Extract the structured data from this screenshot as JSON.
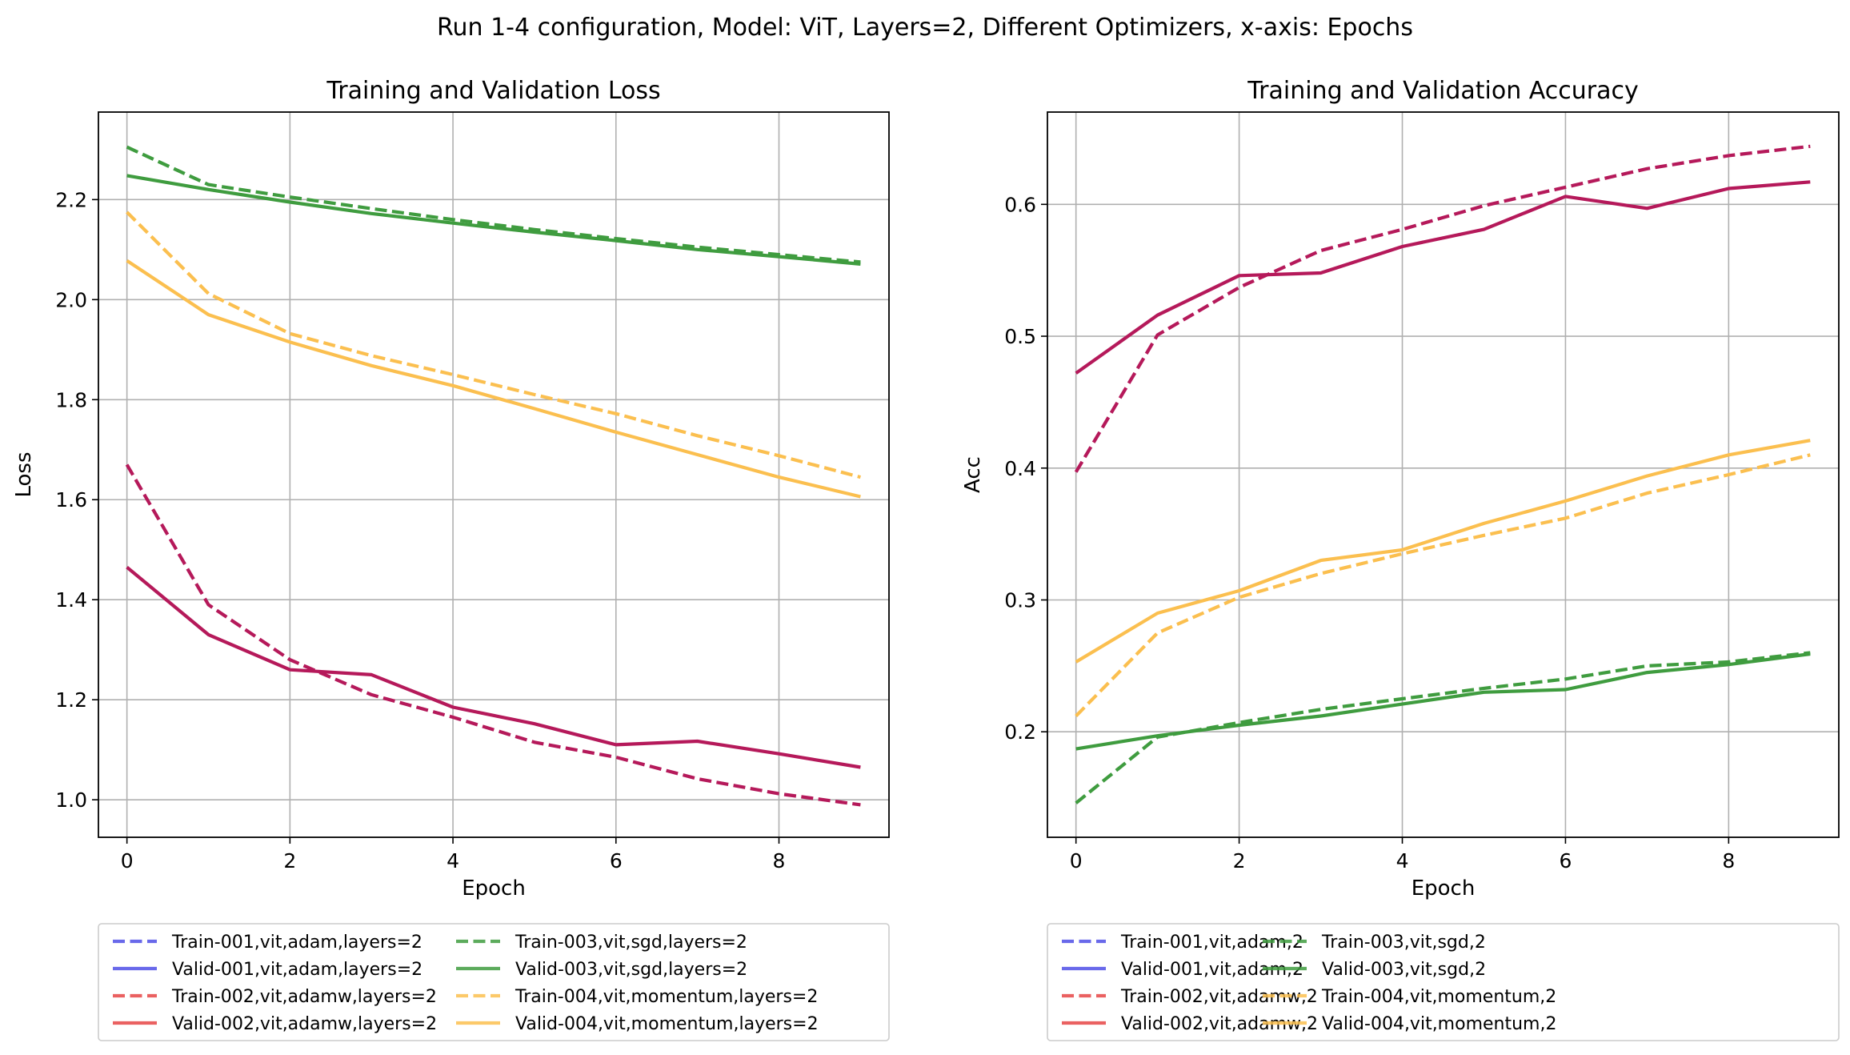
{
  "figure_title": "Run 1-4 configuration, Model: ViT, Layers=2, Different Optimizers, x-axis: Epochs",
  "colors": {
    "run001": "#4f4fe6",
    "run002": "#e64545",
    "run003": "#3f9c3f",
    "run004": "#fbbf4f",
    "overlap": "#b5195a",
    "grid": "#b0b0b0"
  },
  "chart_data": [
    {
      "type": "line",
      "title": "Training and Validation Loss",
      "xlabel": "Epoch",
      "ylabel": "Loss",
      "xlim": [
        -0.35,
        9.35
      ],
      "ylim": [
        0.925,
        2.375
      ],
      "xticks": [
        0,
        2,
        4,
        6,
        8
      ],
      "yticks": [
        1.0,
        1.2,
        1.4,
        1.6,
        1.8,
        2.0,
        2.2
      ],
      "ytick_labels": [
        "1.0",
        "1.2",
        "1.4",
        "1.6",
        "1.8",
        "2.0",
        "2.2"
      ],
      "grid": true,
      "legend_placement": "below",
      "x": [
        0,
        1,
        2,
        3,
        4,
        5,
        6,
        7,
        8,
        9
      ],
      "series": [
        {
          "name": "Train-001,vit,adam,layers=2",
          "style": "dashed",
          "color": "#4f4fe6",
          "values": [
            1.67,
            1.39,
            1.28,
            1.21,
            1.165,
            1.115,
            1.085,
            1.042,
            1.012,
            0.99
          ],
          "visible": false
        },
        {
          "name": "Valid-001,vit,adam,layers=2",
          "style": "solid",
          "color": "#4f4fe6",
          "values": [
            1.465,
            1.33,
            1.26,
            1.25,
            1.185,
            1.152,
            1.11,
            1.117,
            1.092,
            1.065
          ],
          "visible": false
        },
        {
          "name": "Train-002,vit,adamw,layers=2",
          "style": "dashed",
          "color": "#e64545",
          "values": [
            1.67,
            1.39,
            1.28,
            1.21,
            1.165,
            1.115,
            1.085,
            1.042,
            1.012,
            0.99
          ],
          "visible": false
        },
        {
          "name": "Valid-002,vit,adamw,layers=2",
          "style": "solid",
          "color": "#e64545",
          "values": [
            1.465,
            1.33,
            1.26,
            1.25,
            1.185,
            1.152,
            1.11,
            1.117,
            1.092,
            1.065
          ],
          "visible": false
        },
        {
          "name": "Train-003,vit,sgd,layers=2",
          "style": "dashed",
          "color": "#3f9c3f",
          "values": [
            2.305,
            2.23,
            2.205,
            2.182,
            2.16,
            2.14,
            2.122,
            2.105,
            2.09,
            2.075
          ],
          "visible": true
        },
        {
          "name": "Valid-003,vit,sgd,layers=2",
          "style": "solid",
          "color": "#3f9c3f",
          "values": [
            2.248,
            2.22,
            2.195,
            2.172,
            2.153,
            2.135,
            2.118,
            2.1,
            2.086,
            2.071
          ],
          "visible": true
        },
        {
          "name": "Train-004,vit,momentum,layers=2",
          "style": "dashed",
          "color": "#fbbf4f",
          "values": [
            2.175,
            2.012,
            1.932,
            1.888,
            1.85,
            1.81,
            1.772,
            1.728,
            1.688,
            1.645
          ],
          "visible": true
        },
        {
          "name": "Valid-004,vit,momentum,layers=2",
          "style": "solid",
          "color": "#fbbf4f",
          "values": [
            2.078,
            1.97,
            1.915,
            1.868,
            1.828,
            1.782,
            1.735,
            1.69,
            1.645,
            1.606
          ],
          "visible": true
        },
        {
          "name": "",
          "style": "dashed",
          "color": "#b5195a",
          "values": [
            1.67,
            1.39,
            1.28,
            1.21,
            1.165,
            1.115,
            1.085,
            1.042,
            1.012,
            0.99
          ],
          "visible": true,
          "legend": false
        },
        {
          "name": "",
          "style": "solid",
          "color": "#b5195a",
          "values": [
            1.465,
            1.33,
            1.26,
            1.25,
            1.185,
            1.152,
            1.11,
            1.117,
            1.092,
            1.065
          ],
          "visible": true,
          "legend": false
        }
      ]
    },
    {
      "type": "line",
      "title": "Training and Validation Accuracy",
      "xlabel": "Epoch",
      "ylabel": "Acc",
      "xlim": [
        -0.35,
        9.35
      ],
      "ylim": [
        0.12,
        0.67
      ],
      "xticks": [
        0,
        2,
        4,
        6,
        8
      ],
      "yticks": [
        0.2,
        0.3,
        0.4,
        0.5,
        0.6
      ],
      "ytick_labels": [
        "0.2",
        "0.3",
        "0.4",
        "0.5",
        "0.6"
      ],
      "grid": true,
      "legend_placement": "below",
      "x": [
        0,
        1,
        2,
        3,
        4,
        5,
        6,
        7,
        8,
        9
      ],
      "series": [
        {
          "name": "Train-001,vit,adam,2",
          "style": "dashed",
          "color": "#4f4fe6",
          "values": [
            0.397,
            0.501,
            0.537,
            0.565,
            0.581,
            0.599,
            0.613,
            0.627,
            0.637,
            0.644
          ],
          "visible": false
        },
        {
          "name": "Valid-001,vit,adam,2",
          "style": "solid",
          "color": "#4f4fe6",
          "values": [
            0.472,
            0.516,
            0.546,
            0.548,
            0.568,
            0.581,
            0.606,
            0.597,
            0.612,
            0.617
          ],
          "visible": false
        },
        {
          "name": "Train-002,vit,adamw,2",
          "style": "dashed",
          "color": "#e64545",
          "values": [
            0.397,
            0.501,
            0.537,
            0.565,
            0.581,
            0.599,
            0.613,
            0.627,
            0.637,
            0.644
          ],
          "visible": false
        },
        {
          "name": "Valid-002,vit,adamw,2",
          "style": "solid",
          "color": "#e64545",
          "values": [
            0.472,
            0.516,
            0.546,
            0.548,
            0.568,
            0.581,
            0.606,
            0.597,
            0.612,
            0.617
          ],
          "visible": false
        },
        {
          "name": "Train-003,vit,sgd,2",
          "style": "dashed",
          "color": "#3f9c3f",
          "values": [
            0.146,
            0.196,
            0.207,
            0.217,
            0.225,
            0.233,
            0.24,
            0.25,
            0.253,
            0.26
          ],
          "visible": true
        },
        {
          "name": "Valid-003,vit,sgd,2",
          "style": "solid",
          "color": "#3f9c3f",
          "values": [
            0.187,
            0.197,
            0.205,
            0.212,
            0.221,
            0.23,
            0.232,
            0.245,
            0.251,
            0.259
          ],
          "visible": true
        },
        {
          "name": "Train-004,vit,momentum,2",
          "style": "dashed",
          "color": "#fbbf4f",
          "values": [
            0.212,
            0.275,
            0.302,
            0.32,
            0.335,
            0.349,
            0.362,
            0.381,
            0.395,
            0.41
          ],
          "visible": true
        },
        {
          "name": "Valid-004,vit,momentum,2",
          "style": "solid",
          "color": "#fbbf4f",
          "values": [
            0.253,
            0.29,
            0.307,
            0.33,
            0.338,
            0.358,
            0.375,
            0.394,
            0.41,
            0.421
          ],
          "visible": true
        },
        {
          "name": "",
          "style": "dashed",
          "color": "#b5195a",
          "values": [
            0.397,
            0.501,
            0.537,
            0.565,
            0.581,
            0.599,
            0.613,
            0.627,
            0.637,
            0.644
          ],
          "visible": true,
          "legend": false
        },
        {
          "name": "",
          "style": "solid",
          "color": "#b5195a",
          "values": [
            0.472,
            0.516,
            0.546,
            0.548,
            0.568,
            0.581,
            0.606,
            0.597,
            0.612,
            0.617
          ],
          "visible": true,
          "legend": false
        }
      ]
    }
  ]
}
